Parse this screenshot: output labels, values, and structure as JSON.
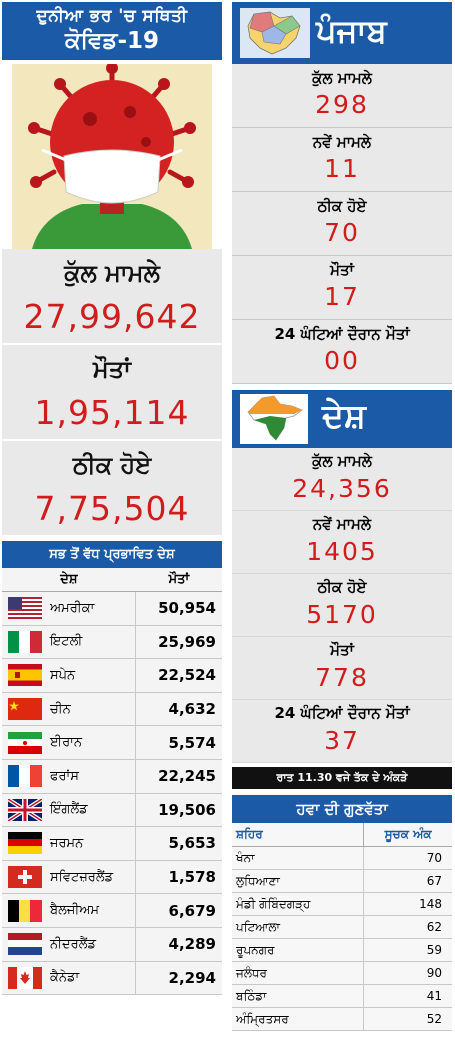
{
  "world": {
    "heading_line1": "ਦੁਨੀਆ ਭਰ 'ਚ ਸਥਿਤੀ",
    "heading_line2": "ਕੋਵਿਡ-19",
    "stats": [
      {
        "label": "ਕੁੱਲ ਮਾਮਲੇ",
        "value": "27,99,642"
      },
      {
        "label": "ਮੌਤਾਂ",
        "value": "1,95,114"
      },
      {
        "label": "ਠੀਕ ਹੋਏ",
        "value": "7,75,504"
      }
    ]
  },
  "affected": {
    "heading": "ਸਭ ਤੋਂ ਵੱਧ ਪ੍ਰਭਾਵਿਤ ਦੇਸ਼",
    "col_country": "ਦੇਸ਼",
    "col_deaths": "ਮੌਤਾਂ",
    "rows": [
      {
        "flag": "usa-flag-icon",
        "country": "ਅਮਰੀਕਾ",
        "deaths": "50,954"
      },
      {
        "flag": "italy-flag-icon",
        "country": "ਇਟਲੀ",
        "deaths": "25,969"
      },
      {
        "flag": "spain-flag-icon",
        "country": "ਸਪੇਨ",
        "deaths": "22,524"
      },
      {
        "flag": "china-flag-icon",
        "country": "ਚੀਨ",
        "deaths": "4,632"
      },
      {
        "flag": "iran-flag-icon",
        "country": "ਈਰਾਨ",
        "deaths": "5,574"
      },
      {
        "flag": "france-flag-icon",
        "country": "ਫਰਾਂਸ",
        "deaths": "22,245"
      },
      {
        "flag": "uk-flag-icon",
        "country": "ਇੰਗਲੈਂਡ",
        "deaths": "19,506"
      },
      {
        "flag": "germany-flag-icon",
        "country": "ਜਰਮਨ",
        "deaths": "5,653"
      },
      {
        "flag": "switzerland-flag-icon",
        "country": "ਸਵਿਟਜ਼ਰਲੈਂਡ",
        "deaths": "1,578"
      },
      {
        "flag": "belgium-flag-icon",
        "country": "ਬੈਲਜੀਅਮ",
        "deaths": "6,679"
      },
      {
        "flag": "netherlands-flag-icon",
        "country": "ਨੀਦਰਲੈਂਡ",
        "deaths": "4,289"
      },
      {
        "flag": "canada-flag-icon",
        "country": "ਕੈਨੇਡਾ",
        "deaths": "2,294"
      }
    ]
  },
  "punjab": {
    "heading": "ਪੰਜਾਬ",
    "stats": [
      {
        "label": "ਕੁੱਲ ਮਾਮਲੇ",
        "value": "298"
      },
      {
        "label": "ਨਵੇਂ ਮਾਮਲੇ",
        "value": "11"
      },
      {
        "label": "ਠੀਕ ਹੋਏ",
        "value": "70"
      },
      {
        "label": "ਮੌਤਾਂ",
        "value": "17"
      },
      {
        "label": "24 ਘੰਟਿਆਂ ਦੌਰਾਨ ਮੌਤਾਂ",
        "value": "00"
      }
    ]
  },
  "country": {
    "heading": "ਦੇਸ਼",
    "stats": [
      {
        "label": "ਕੁੱਲ ਮਾਮਲੇ",
        "value": "24,356"
      },
      {
        "label": "ਨਵੇਂ ਮਾਮਲੇ",
        "value": "1405"
      },
      {
        "label": "ਠੀਕ ਹੋਏ",
        "value": "5170"
      },
      {
        "label": "ਮੌਤਾਂ",
        "value": "778"
      },
      {
        "label": "24 ਘੰਟਿਆਂ ਦੌਰਾਨ ਮੌਤਾਂ",
        "value": "37"
      }
    ],
    "note": "ਰਾਤ 11.30 ਵਜੇ ਤੱਕ ਦੇ ਅੰਕੜੇ"
  },
  "air_quality": {
    "heading": "ਹਵਾ ਦੀ ਗੁਣਵੱਤਾ",
    "col_city": "ਸ਼ਹਿਰ",
    "col_index": "ਸੂਚਕ ਅੰਕ",
    "rows": [
      {
        "city": "ਖੰਨਾ",
        "index": "70"
      },
      {
        "city": "ਲੁਧਿਆਣਾ",
        "index": "67"
      },
      {
        "city": "ਮੰਡੀ ਗੋਬਿੰਦਗੜ੍ਹ",
        "index": "148"
      },
      {
        "city": "ਪਟਿਆਲਾ",
        "index": "62"
      },
      {
        "city": "ਰੂਪਨਗਰ",
        "index": "59"
      },
      {
        "city": "ਜਲੰਧਰ",
        "index": "90"
      },
      {
        "city": "ਬਠਿੰਡਾ",
        "index": "41"
      },
      {
        "city": "ਅੰਮ੍ਰਿਤਸਰ",
        "index": "52"
      }
    ]
  }
}
